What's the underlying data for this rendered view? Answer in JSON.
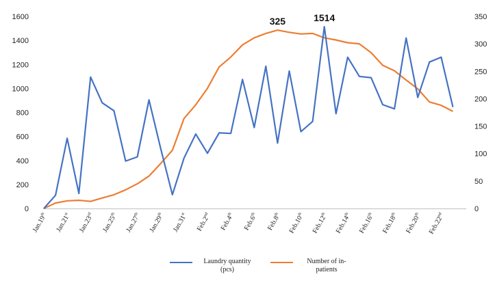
{
  "chart_data": {
    "type": "line",
    "x": [
      "Jan.19",
      "Jan.20",
      "Jan.21",
      "Jan.22",
      "Jan.23",
      "Jan.24",
      "Jan.25",
      "Jan.26",
      "Jan.27",
      "Jan.28",
      "Jan.29",
      "Jan.30",
      "Jan.31",
      "Feb.1",
      "Feb.2",
      "Feb.3",
      "Feb.4",
      "Feb.5",
      "Feb.6",
      "Feb.7",
      "Feb.8",
      "Feb.9",
      "Feb.10",
      "Feb.11",
      "Feb.12",
      "Feb.13",
      "Feb.14",
      "Feb.15",
      "Feb.16",
      "Feb.17",
      "Feb.18",
      "Feb.19",
      "Feb.20",
      "Feb.21",
      "Feb.22",
      "Feb.23"
    ],
    "x_tick_labels": [
      {
        "base": "Jan.19",
        "suffix": "th"
      },
      {
        "base": "Jan.21",
        "suffix": "st"
      },
      {
        "base": "Jan.23",
        "suffix": "rd"
      },
      {
        "base": "Jan.25",
        "suffix": "th"
      },
      {
        "base": "Jan.27",
        "suffix": "th"
      },
      {
        "base": "Jan.29",
        "suffix": "th"
      },
      {
        "base": "Jan.31",
        "suffix": "st"
      },
      {
        "base": "Feb.2",
        "suffix": "nd"
      },
      {
        "base": "Feb.4",
        "suffix": "th"
      },
      {
        "base": "Feb.6",
        "suffix": "th"
      },
      {
        "base": "Feb.8",
        "suffix": "th"
      },
      {
        "base": "Feb.10",
        "suffix": "th"
      },
      {
        "base": "Feb.12",
        "suffix": "th"
      },
      {
        "base": "Feb.14",
        "suffix": "th"
      },
      {
        "base": "Feb.16",
        "suffix": "th"
      },
      {
        "base": "Feb.18",
        "suffix": "th"
      },
      {
        "base": "Feb.20",
        "suffix": "th"
      },
      {
        "base": "Feb.22",
        "suffix": "nd"
      }
    ],
    "series": [
      {
        "name": "Laundry quantity (pcs)",
        "axis": "left",
        "color": "#4472C4",
        "values": [
          0,
          110,
          585,
          125,
          1095,
          880,
          815,
          395,
          430,
          905,
          500,
          115,
          420,
          620,
          460,
          630,
          625,
          1075,
          675,
          1185,
          545,
          1145,
          640,
          725,
          1514,
          790,
          1260,
          1100,
          1090,
          865,
          830,
          1420,
          925,
          1220,
          1260,
          845
        ]
      },
      {
        "name": "Number of in-patients",
        "axis": "right",
        "color": "#ED7D31",
        "values": [
          0,
          10,
          14,
          15,
          13,
          19,
          25,
          34,
          45,
          59,
          82,
          106,
          164,
          189,
          219,
          258,
          276,
          298,
          311,
          319,
          325,
          321,
          318,
          319,
          311,
          307,
          302,
          300,
          284,
          261,
          251,
          234,
          218,
          194,
          188,
          177
        ]
      }
    ],
    "annotations": [
      {
        "text": "325",
        "x": "Feb.8"
      },
      {
        "text": "1514",
        "x": "Feb.12"
      }
    ],
    "y_left": {
      "ticks": [
        "0",
        "200",
        "400",
        "600",
        "800",
        "1000",
        "1200",
        "1400",
        "1600"
      ],
      "lim": [
        0,
        1600
      ]
    },
    "y_right": {
      "ticks": [
        "0",
        "50",
        "100",
        "150",
        "200",
        "250",
        "300",
        "350"
      ],
      "lim": [
        0,
        350
      ]
    },
    "grid": false,
    "legend_position": "bottom",
    "legend": [
      {
        "lines": [
          "Laundry quantity",
          "(pcs)"
        ],
        "color": "#4472C4"
      },
      {
        "lines": [
          "Number of in-",
          "patients"
        ],
        "color": "#ED7D31"
      }
    ]
  }
}
